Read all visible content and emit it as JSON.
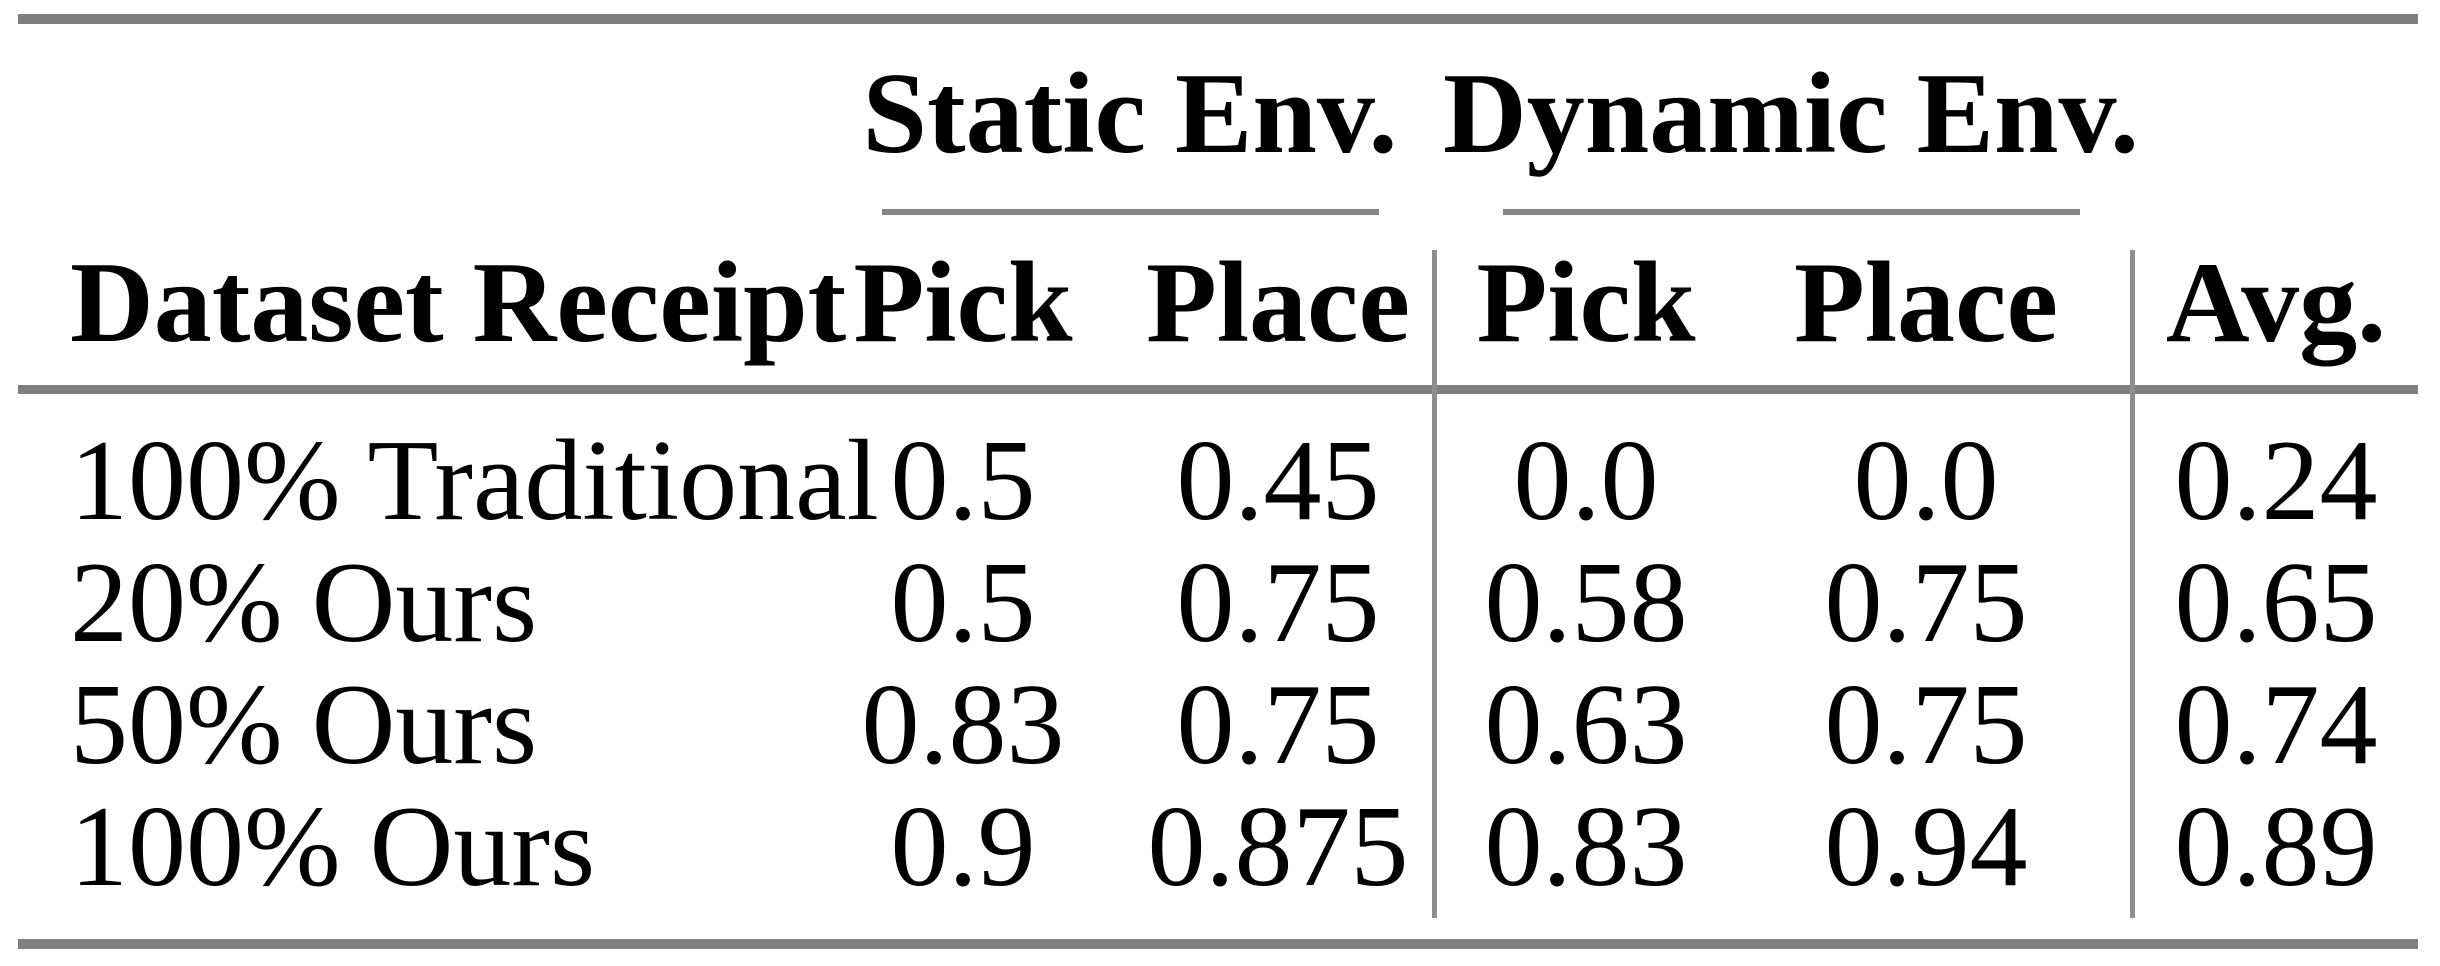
{
  "colors": {
    "background": "#ffffff",
    "text": "#000000",
    "rule_gray": "#7f7f7f"
  },
  "table": {
    "group_headers": {
      "static": "Static Env.",
      "dynamic": "Dynamic Env."
    },
    "column_headers": {
      "dataset": "Dataset Receipt",
      "static_pick": "Pick",
      "static_place": "Place",
      "dynamic_pick": "Pick",
      "dynamic_place": "Place",
      "avg": "Avg."
    },
    "rows": [
      {
        "label": "100% Traditional",
        "cells": [
          "0.5",
          "0.45",
          "0.0",
          "0.0",
          "0.24"
        ]
      },
      {
        "label": "20% Ours",
        "cells": [
          "0.5",
          "0.75",
          "0.58",
          "0.75",
          "0.65"
        ]
      },
      {
        "label": "50% Ours",
        "cells": [
          "0.83",
          "0.75",
          "0.63",
          "0.75",
          "0.74"
        ]
      },
      {
        "label": "100% Ours",
        "cells": [
          "0.9",
          "0.875",
          "0.83",
          "0.94",
          "0.89"
        ]
      }
    ]
  },
  "chart_data": {
    "type": "table",
    "title": "",
    "column_groups": [
      "",
      "Static Env.",
      "Static Env.",
      "Dynamic Env.",
      "Dynamic Env.",
      ""
    ],
    "columns": [
      "Dataset Receipt",
      "Pick",
      "Place",
      "Pick",
      "Place",
      "Avg."
    ],
    "rows": [
      [
        "100% Traditional",
        0.5,
        0.45,
        0.0,
        0.0,
        0.24
      ],
      [
        "20% Ours",
        0.5,
        0.75,
        0.58,
        0.75,
        0.65
      ],
      [
        "50% Ours",
        0.83,
        0.75,
        0.63,
        0.75,
        0.74
      ],
      [
        "100% Ours",
        0.9,
        0.875,
        0.83,
        0.94,
        0.89
      ]
    ]
  }
}
